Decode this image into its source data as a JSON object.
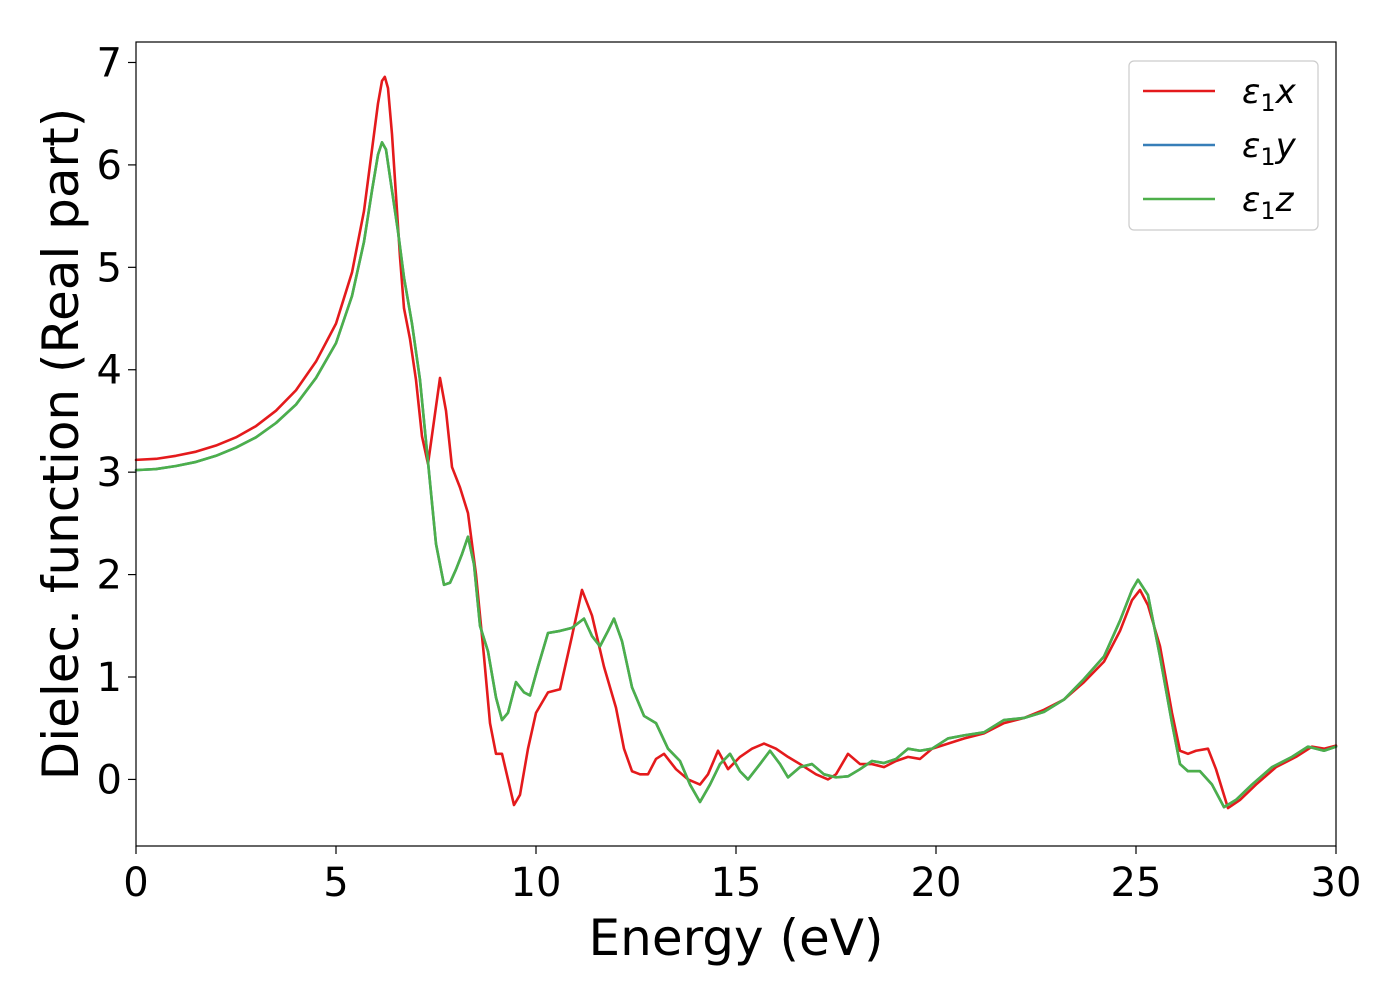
{
  "chart_data": {
    "type": "line",
    "xlabel": "Energy (eV)",
    "ylabel": "Dielec. function (Real part)",
    "xlim": [
      0,
      30
    ],
    "ylim": [
      -0.65,
      7.2
    ],
    "xticks": [
      "0",
      "5",
      "10",
      "15",
      "20",
      "25",
      "30"
    ],
    "yticks": [
      "0",
      "1",
      "2",
      "3",
      "4",
      "5",
      "6",
      "7"
    ],
    "grid": false,
    "legend_position": "top-right",
    "series": [
      {
        "name": "ε1x",
        "label_base": "ε",
        "label_sub": "1",
        "label_suffix": "x",
        "color": "#e41a1c",
        "points": [
          [
            0,
            3.12
          ],
          [
            0.5,
            3.13
          ],
          [
            1,
            3.16
          ],
          [
            1.5,
            3.2
          ],
          [
            2,
            3.26
          ],
          [
            2.5,
            3.34
          ],
          [
            3,
            3.45
          ],
          [
            3.5,
            3.6
          ],
          [
            4,
            3.8
          ],
          [
            4.5,
            4.08
          ],
          [
            5,
            4.45
          ],
          [
            5.4,
            4.95
          ],
          [
            5.7,
            5.55
          ],
          [
            5.9,
            6.15
          ],
          [
            6.05,
            6.6
          ],
          [
            6.15,
            6.82
          ],
          [
            6.22,
            6.86
          ],
          [
            6.3,
            6.75
          ],
          [
            6.4,
            6.3
          ],
          [
            6.5,
            5.7
          ],
          [
            6.6,
            5.1
          ],
          [
            6.7,
            4.6
          ],
          [
            6.85,
            4.3
          ],
          [
            7.0,
            3.9
          ],
          [
            7.15,
            3.35
          ],
          [
            7.3,
            3.08
          ],
          [
            7.45,
            3.5
          ],
          [
            7.6,
            3.92
          ],
          [
            7.75,
            3.6
          ],
          [
            7.9,
            3.05
          ],
          [
            8.1,
            2.85
          ],
          [
            8.3,
            2.6
          ],
          [
            8.5,
            2.0
          ],
          [
            8.7,
            1.2
          ],
          [
            8.85,
            0.55
          ],
          [
            9.0,
            0.25
          ],
          [
            9.15,
            0.25
          ],
          [
            9.3,
            0.0
          ],
          [
            9.45,
            -0.25
          ],
          [
            9.6,
            -0.15
          ],
          [
            9.8,
            0.3
          ],
          [
            10.0,
            0.65
          ],
          [
            10.3,
            0.85
          ],
          [
            10.6,
            0.88
          ],
          [
            10.9,
            1.4
          ],
          [
            11.15,
            1.85
          ],
          [
            11.4,
            1.6
          ],
          [
            11.7,
            1.1
          ],
          [
            12.0,
            0.7
          ],
          [
            12.2,
            0.3
          ],
          [
            12.4,
            0.08
          ],
          [
            12.6,
            0.05
          ],
          [
            12.8,
            0.05
          ],
          [
            13.0,
            0.2
          ],
          [
            13.2,
            0.25
          ],
          [
            13.5,
            0.1
          ],
          [
            13.8,
            0.0
          ],
          [
            14.1,
            -0.05
          ],
          [
            14.3,
            0.05
          ],
          [
            14.55,
            0.28
          ],
          [
            14.8,
            0.1
          ],
          [
            15.1,
            0.22
          ],
          [
            15.4,
            0.3
          ],
          [
            15.7,
            0.35
          ],
          [
            16.0,
            0.3
          ],
          [
            16.3,
            0.22
          ],
          [
            16.6,
            0.15
          ],
          [
            17.0,
            0.05
          ],
          [
            17.3,
            0.0
          ],
          [
            17.5,
            0.05
          ],
          [
            17.8,
            0.25
          ],
          [
            18.1,
            0.15
          ],
          [
            18.4,
            0.15
          ],
          [
            18.7,
            0.12
          ],
          [
            19.0,
            0.18
          ],
          [
            19.3,
            0.22
          ],
          [
            19.6,
            0.2
          ],
          [
            19.9,
            0.3
          ],
          [
            20.3,
            0.35
          ],
          [
            20.7,
            0.4
          ],
          [
            21.2,
            0.45
          ],
          [
            21.7,
            0.55
          ],
          [
            22.2,
            0.6
          ],
          [
            22.7,
            0.68
          ],
          [
            23.2,
            0.78
          ],
          [
            23.7,
            0.95
          ],
          [
            24.2,
            1.15
          ],
          [
            24.6,
            1.45
          ],
          [
            24.9,
            1.75
          ],
          [
            25.1,
            1.85
          ],
          [
            25.3,
            1.7
          ],
          [
            25.6,
            1.3
          ],
          [
            25.9,
            0.65
          ],
          [
            26.1,
            0.28
          ],
          [
            26.3,
            0.25
          ],
          [
            26.5,
            0.28
          ],
          [
            26.8,
            0.3
          ],
          [
            27.0,
            0.1
          ],
          [
            27.3,
            -0.28
          ],
          [
            27.6,
            -0.2
          ],
          [
            28.0,
            -0.05
          ],
          [
            28.5,
            0.12
          ],
          [
            29.0,
            0.22
          ],
          [
            29.4,
            0.32
          ],
          [
            29.7,
            0.3
          ],
          [
            30.0,
            0.33
          ]
        ]
      },
      {
        "name": "ε1y",
        "label_base": "ε",
        "label_sub": "1",
        "label_suffix": "y",
        "color": "#377eb8",
        "points": [
          [
            0,
            3.02
          ],
          [
            0.5,
            3.03
          ],
          [
            1,
            3.06
          ],
          [
            1.5,
            3.1
          ],
          [
            2,
            3.16
          ],
          [
            2.5,
            3.24
          ],
          [
            3,
            3.34
          ],
          [
            3.5,
            3.48
          ],
          [
            4,
            3.66
          ],
          [
            4.5,
            3.92
          ],
          [
            5,
            4.26
          ],
          [
            5.4,
            4.72
          ],
          [
            5.7,
            5.25
          ],
          [
            5.9,
            5.75
          ],
          [
            6.05,
            6.1
          ],
          [
            6.15,
            6.22
          ],
          [
            6.25,
            6.15
          ],
          [
            6.4,
            5.75
          ],
          [
            6.55,
            5.35
          ],
          [
            6.7,
            4.9
          ],
          [
            6.9,
            4.45
          ],
          [
            7.1,
            3.9
          ],
          [
            7.3,
            3.1
          ],
          [
            7.5,
            2.3
          ],
          [
            7.7,
            1.9
          ],
          [
            7.85,
            1.92
          ],
          [
            8.0,
            2.05
          ],
          [
            8.15,
            2.2
          ],
          [
            8.3,
            2.37
          ],
          [
            8.45,
            2.1
          ],
          [
            8.6,
            1.5
          ],
          [
            8.8,
            1.25
          ],
          [
            9.0,
            0.8
          ],
          [
            9.15,
            0.58
          ],
          [
            9.3,
            0.65
          ],
          [
            9.5,
            0.95
          ],
          [
            9.7,
            0.85
          ],
          [
            9.85,
            0.82
          ],
          [
            10.05,
            1.1
          ],
          [
            10.3,
            1.43
          ],
          [
            10.6,
            1.45
          ],
          [
            10.9,
            1.48
          ],
          [
            11.2,
            1.57
          ],
          [
            11.4,
            1.4
          ],
          [
            11.6,
            1.3
          ],
          [
            11.8,
            1.45
          ],
          [
            11.95,
            1.57
          ],
          [
            12.15,
            1.35
          ],
          [
            12.4,
            0.9
          ],
          [
            12.7,
            0.62
          ],
          [
            13.0,
            0.55
          ],
          [
            13.3,
            0.3
          ],
          [
            13.6,
            0.18
          ],
          [
            13.85,
            -0.05
          ],
          [
            14.1,
            -0.22
          ],
          [
            14.35,
            -0.05
          ],
          [
            14.6,
            0.15
          ],
          [
            14.85,
            0.25
          ],
          [
            15.1,
            0.08
          ],
          [
            15.3,
            0.0
          ],
          [
            15.6,
            0.15
          ],
          [
            15.85,
            0.28
          ],
          [
            16.1,
            0.15
          ],
          [
            16.3,
            0.02
          ],
          [
            16.6,
            0.12
          ],
          [
            16.9,
            0.15
          ],
          [
            17.2,
            0.05
          ],
          [
            17.5,
            0.02
          ],
          [
            17.8,
            0.03
          ],
          [
            18.1,
            0.1
          ],
          [
            18.4,
            0.18
          ],
          [
            18.7,
            0.16
          ],
          [
            19.0,
            0.2
          ],
          [
            19.3,
            0.3
          ],
          [
            19.6,
            0.28
          ],
          [
            19.9,
            0.3
          ],
          [
            20.3,
            0.4
          ],
          [
            20.7,
            0.43
          ],
          [
            21.2,
            0.46
          ],
          [
            21.7,
            0.58
          ],
          [
            22.2,
            0.6
          ],
          [
            22.7,
            0.66
          ],
          [
            23.2,
            0.78
          ],
          [
            23.7,
            0.98
          ],
          [
            24.2,
            1.2
          ],
          [
            24.6,
            1.55
          ],
          [
            24.9,
            1.85
          ],
          [
            25.05,
            1.95
          ],
          [
            25.3,
            1.8
          ],
          [
            25.6,
            1.2
          ],
          [
            25.9,
            0.55
          ],
          [
            26.1,
            0.15
          ],
          [
            26.3,
            0.08
          ],
          [
            26.6,
            0.08
          ],
          [
            26.9,
            -0.05
          ],
          [
            27.2,
            -0.27
          ],
          [
            27.5,
            -0.2
          ],
          [
            27.9,
            -0.05
          ],
          [
            28.4,
            0.12
          ],
          [
            28.9,
            0.22
          ],
          [
            29.3,
            0.32
          ],
          [
            29.7,
            0.28
          ],
          [
            30.0,
            0.32
          ]
        ]
      },
      {
        "name": "ε1z",
        "label_base": "ε",
        "label_sub": "1",
        "label_suffix": "z",
        "color": "#4daf4a",
        "points": [
          [
            0,
            3.02
          ],
          [
            0.5,
            3.03
          ],
          [
            1,
            3.06
          ],
          [
            1.5,
            3.1
          ],
          [
            2,
            3.16
          ],
          [
            2.5,
            3.24
          ],
          [
            3,
            3.34
          ],
          [
            3.5,
            3.48
          ],
          [
            4,
            3.66
          ],
          [
            4.5,
            3.92
          ],
          [
            5,
            4.26
          ],
          [
            5.4,
            4.72
          ],
          [
            5.7,
            5.25
          ],
          [
            5.9,
            5.75
          ],
          [
            6.05,
            6.1
          ],
          [
            6.15,
            6.22
          ],
          [
            6.25,
            6.15
          ],
          [
            6.4,
            5.75
          ],
          [
            6.55,
            5.35
          ],
          [
            6.7,
            4.9
          ],
          [
            6.9,
            4.45
          ],
          [
            7.1,
            3.9
          ],
          [
            7.3,
            3.1
          ],
          [
            7.5,
            2.3
          ],
          [
            7.7,
            1.9
          ],
          [
            7.85,
            1.92
          ],
          [
            8.0,
            2.05
          ],
          [
            8.15,
            2.2
          ],
          [
            8.3,
            2.37
          ],
          [
            8.45,
            2.1
          ],
          [
            8.6,
            1.5
          ],
          [
            8.8,
            1.25
          ],
          [
            9.0,
            0.8
          ],
          [
            9.15,
            0.58
          ],
          [
            9.3,
            0.65
          ],
          [
            9.5,
            0.95
          ],
          [
            9.7,
            0.85
          ],
          [
            9.85,
            0.82
          ],
          [
            10.05,
            1.1
          ],
          [
            10.3,
            1.43
          ],
          [
            10.6,
            1.45
          ],
          [
            10.9,
            1.48
          ],
          [
            11.2,
            1.57
          ],
          [
            11.4,
            1.4
          ],
          [
            11.6,
            1.3
          ],
          [
            11.8,
            1.45
          ],
          [
            11.95,
            1.57
          ],
          [
            12.15,
            1.35
          ],
          [
            12.4,
            0.9
          ],
          [
            12.7,
            0.62
          ],
          [
            13.0,
            0.55
          ],
          [
            13.3,
            0.3
          ],
          [
            13.6,
            0.18
          ],
          [
            13.85,
            -0.05
          ],
          [
            14.1,
            -0.22
          ],
          [
            14.35,
            -0.05
          ],
          [
            14.6,
            0.15
          ],
          [
            14.85,
            0.25
          ],
          [
            15.1,
            0.08
          ],
          [
            15.3,
            0.0
          ],
          [
            15.6,
            0.15
          ],
          [
            15.85,
            0.28
          ],
          [
            16.1,
            0.15
          ],
          [
            16.3,
            0.02
          ],
          [
            16.6,
            0.12
          ],
          [
            16.9,
            0.15
          ],
          [
            17.2,
            0.05
          ],
          [
            17.5,
            0.02
          ],
          [
            17.8,
            0.03
          ],
          [
            18.1,
            0.1
          ],
          [
            18.4,
            0.18
          ],
          [
            18.7,
            0.16
          ],
          [
            19.0,
            0.2
          ],
          [
            19.3,
            0.3
          ],
          [
            19.6,
            0.28
          ],
          [
            19.9,
            0.3
          ],
          [
            20.3,
            0.4
          ],
          [
            20.7,
            0.43
          ],
          [
            21.2,
            0.46
          ],
          [
            21.7,
            0.58
          ],
          [
            22.2,
            0.6
          ],
          [
            22.7,
            0.66
          ],
          [
            23.2,
            0.78
          ],
          [
            23.7,
            0.98
          ],
          [
            24.2,
            1.2
          ],
          [
            24.6,
            1.55
          ],
          [
            24.9,
            1.85
          ],
          [
            25.05,
            1.95
          ],
          [
            25.3,
            1.8
          ],
          [
            25.6,
            1.2
          ],
          [
            25.9,
            0.55
          ],
          [
            26.1,
            0.15
          ],
          [
            26.3,
            0.08
          ],
          [
            26.6,
            0.08
          ],
          [
            26.9,
            -0.05
          ],
          [
            27.2,
            -0.27
          ],
          [
            27.5,
            -0.2
          ],
          [
            27.9,
            -0.05
          ],
          [
            28.4,
            0.12
          ],
          [
            28.9,
            0.22
          ],
          [
            29.3,
            0.32
          ],
          [
            29.7,
            0.28
          ],
          [
            30.0,
            0.32
          ]
        ]
      }
    ]
  }
}
